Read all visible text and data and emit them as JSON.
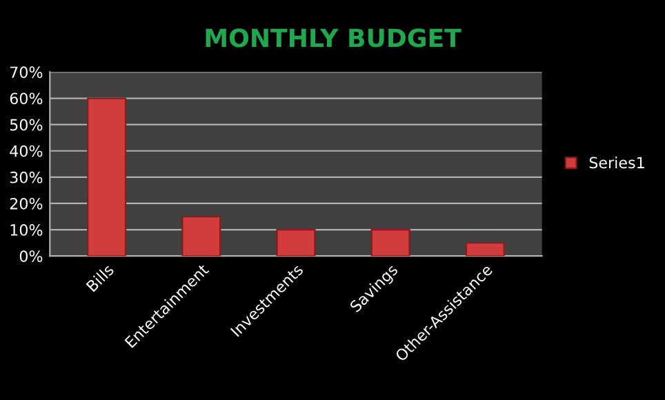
{
  "chart_data": {
    "type": "bar",
    "title": "MONTHLY BUDGET",
    "categories": [
      "Bills",
      "Entertainment",
      "Investments",
      "Savings",
      "Other-Assistance"
    ],
    "series": [
      {
        "name": "Series1",
        "color": "#d23c3c",
        "values": [
          60,
          15,
          10,
          10,
          5
        ]
      }
    ],
    "ylim": [
      0,
      70
    ],
    "yticks": [
      {
        "value": 0,
        "label": "0%"
      },
      {
        "value": 10,
        "label": "10%"
      },
      {
        "value": 20,
        "label": "20%"
      },
      {
        "value": 30,
        "label": "30%"
      },
      {
        "value": 40,
        "label": "40%"
      },
      {
        "value": 50,
        "label": "50%"
      },
      {
        "value": 60,
        "label": "60%"
      },
      {
        "value": 70,
        "label": "70%"
      }
    ],
    "grid": "y",
    "legend": "right"
  }
}
